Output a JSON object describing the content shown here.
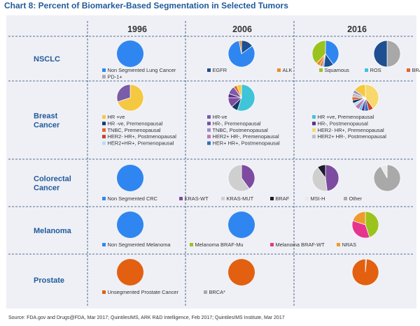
{
  "chart_data": {
    "type": "pie",
    "title": "Chart 8: Percent of Biomarker-Based Segmentation in Selected Tumors",
    "source": "Source: FDA.gov and Drugs@FDA, Mar 2017; QuintilesIMS, ARK R&D Intelligence, Feb 2017; QuintilesIMS Institute, Mar 2017",
    "years": [
      "1996",
      "2006",
      "2016"
    ],
    "rows": [
      {
        "label": "NSCLC",
        "legend_columns": [
          0,
          150,
          250,
          310,
          375,
          435
        ],
        "categories": [
          {
            "name": "Non Segmented Lung Cancer",
            "color": "#2f86f0"
          },
          {
            "name": "EGFR",
            "color": "#1d4f91"
          },
          {
            "name": "ALK",
            "color": "#ef8a24"
          },
          {
            "name": "Squamous",
            "color": "#9bc31e"
          },
          {
            "name": "ROS",
            "color": "#3fc4d8"
          },
          {
            "name": "BRAF",
            "color": "#e4632b"
          },
          {
            "name": "PD-1+",
            "color": "#a8a8a8"
          }
        ],
        "pies": [
          [
            {
              "category": "Non Segmented Lung Cancer",
              "value": 100
            }
          ],
          [
            {
              "category": "EGFR",
              "value": 15
            },
            {
              "category": "Non Segmented Lung Cancer",
              "value": 82
            },
            {
              "category": "ALK",
              "value": 3
            }
          ],
          [
            {
              "category": "Non Segmented Lung Cancer",
              "value": 40
            },
            {
              "category": "EGFR",
              "value": 12
            },
            {
              "category": "ROS",
              "value": 2
            },
            {
              "category": "BRAF",
              "value": 3
            },
            {
              "category": "ALK",
              "value": 5
            },
            {
              "category": "Squamous",
              "value": 38
            }
          ],
          [
            {
              "category": "PD-1+",
              "value": 50
            },
            {
              "category": "EGFR",
              "value": 50
            }
          ]
        ]
      },
      {
        "label": "Breast Cancer",
        "legend_columns": [
          0,
          150,
          300
        ],
        "categories": [
          {
            "name": "HR +ve",
            "color": "#f5c842"
          },
          {
            "name": "HR-ve",
            "color": "#7a5ca8"
          },
          {
            "name": "HR +ve, Premenopausal",
            "color": "#3fc4d8"
          },
          {
            "name": "HR -ve, Premenopausal",
            "color": "#163a66"
          },
          {
            "name": "HR-, Premenopausal",
            "color": "#7d4ba0"
          },
          {
            "name": "HR-, Postmenopausal",
            "color": "#5a2d86"
          },
          {
            "name": "TNBC, Premenopausal",
            "color": "#e4632b"
          },
          {
            "name": "TNBC, Postmenopausal",
            "color": "#9d8fc4"
          },
          {
            "name": "HER2- HR+, Premenopausal",
            "color": "#f6d96a"
          },
          {
            "name": "HER2- HR+, Postmenopausal",
            "color": "#c8402a"
          },
          {
            "name": "HER2+ HR-, Premenopausal",
            "color": "#c276b8"
          },
          {
            "name": "HER2+ HR-, Postmenopausal",
            "color": "#bdbdbd"
          },
          {
            "name": "HER2+HR+, Premenopausal",
            "color": "#b9dcf4"
          },
          {
            "name": "HER+ HR+, Postmenopausal",
            "color": "#2f6fc0"
          }
        ],
        "pies": [
          [
            {
              "category": "HR +ve",
              "value": 70
            },
            {
              "category": "HR-ve",
              "value": 30
            }
          ],
          [
            {
              "category": "HR +ve, Premenopausal",
              "value": 55
            },
            {
              "category": "HR -ve, Premenopausal",
              "value": 8
            },
            {
              "category": "HR-, Premenopausal",
              "value": 12
            },
            {
              "category": "HR-, Postmenopausal",
              "value": 5
            },
            {
              "category": "HR-ve",
              "value": 10
            },
            {
              "category": "TNBC, Premenopausal",
              "value": 4
            },
            {
              "category": "HR +ve",
              "value": 6
            }
          ],
          [
            {
              "category": "HER2- HR+, Premenopausal",
              "value": 40
            },
            {
              "category": "HER2- HR+, Postmenopausal",
              "value": 6
            },
            {
              "category": "HER+ HR+, Postmenopausal",
              "value": 5
            },
            {
              "category": "HR-, Postmenopausal",
              "value": 4
            },
            {
              "category": "HR +ve, Premenopausal",
              "value": 3
            },
            {
              "category": "HER2+ HR-, Premenopausal",
              "value": 6
            },
            {
              "category": "HER2+HR+, Premenopausal",
              "value": 4
            },
            {
              "category": "HR -ve, Premenopausal",
              "value": 4
            },
            {
              "category": "TNBC, Premenopausal",
              "value": 4
            },
            {
              "category": "HER2+ HR-, Postmenopausal",
              "value": 5
            },
            {
              "category": "TNBC, Postmenopausal",
              "value": 4
            },
            {
              "category": "HR +ve",
              "value": 15
            }
          ]
        ]
      },
      {
        "label": "Colorectal Cancer",
        "legend_columns": [
          0,
          110,
          170,
          240,
          290,
          345,
          400
        ],
        "categories": [
          {
            "name": "Non Segmented CRC",
            "color": "#2f86f0"
          },
          {
            "name": "KRAS-WT",
            "color": "#7d4ba0"
          },
          {
            "name": "KRAS-MUT",
            "color": "#cfcfcf"
          },
          {
            "name": "BRAF",
            "color": "#1c1c2e"
          },
          {
            "name": "MSI-H",
            "color": "#e9e9e9"
          },
          {
            "name": "Other",
            "color": "#a9a9a9"
          }
        ],
        "pies": [
          [
            {
              "category": "Non Segmented CRC",
              "value": 100
            }
          ],
          [
            {
              "category": "KRAS-WT",
              "value": 40
            },
            {
              "category": "KRAS-MUT",
              "value": 60
            }
          ],
          [
            {
              "category": "KRAS-WT",
              "value": 48
            },
            {
              "category": "KRAS-MUT",
              "value": 42
            },
            {
              "category": "BRAF",
              "value": 10
            }
          ],
          [
            {
              "category": "Other",
              "value": 92
            },
            {
              "category": "MSI-H",
              "value": 8
            }
          ]
        ]
      },
      {
        "label": "Melanoma",
        "legend_columns": [
          0,
          125,
          240,
          335
        ],
        "categories": [
          {
            "name": "Non Segmented Melanoma",
            "color": "#2f86f0"
          },
          {
            "name": "Melanoma BRAF-Mu",
            "color": "#9bc31e"
          },
          {
            "name": "Melanoma BRAF-WT",
            "color": "#e6358f"
          },
          {
            "name": "NRAS",
            "color": "#ef9a2a"
          }
        ],
        "pies": [
          [
            {
              "category": "Non Segmented Melanoma",
              "value": 100
            }
          ],
          [
            {
              "category": "Non Segmented Melanoma",
              "value": 100
            }
          ],
          [
            {
              "category": "Melanoma BRAF-Mu",
              "value": 45
            },
            {
              "category": "Melanoma BRAF-WT",
              "value": 35
            },
            {
              "category": "NRAS",
              "value": 20
            }
          ]
        ]
      },
      {
        "label": "Prostate",
        "legend_columns": [
          0,
          145
        ],
        "categories": [
          {
            "name": "Unsegmented Prostate Cancer",
            "color": "#e2600f"
          },
          {
            "name": "BRCA*",
            "color": "#a9a9a9"
          }
        ],
        "pies": [
          [
            {
              "category": "Unsegmented Prostate Cancer",
              "value": 100
            }
          ],
          [
            {
              "category": "Unsegmented Prostate Cancer",
              "value": 100
            }
          ],
          [
            {
              "category": "BRCA*",
              "value": 1.5
            },
            {
              "category": "Unsegmented Prostate Cancer",
              "value": 98.5
            }
          ]
        ]
      }
    ]
  }
}
